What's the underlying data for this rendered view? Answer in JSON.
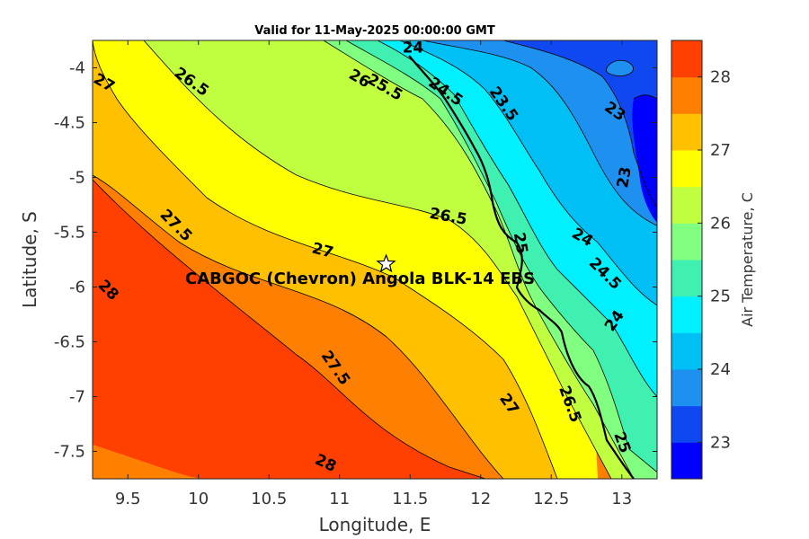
{
  "title": "Valid for 11-May-2025 00:00:00 GMT",
  "chart_data": {
    "type": "heatmap",
    "xlabel": "Longitude, E",
    "ylabel": "Latitude, S",
    "xlim": [
      9.25,
      13.25
    ],
    "ylim": [
      -7.75,
      -3.75
    ],
    "xticks": [
      "9.5",
      "10",
      "10.5",
      "11",
      "11.5",
      "12",
      "12.5",
      "13"
    ],
    "xtick_values": [
      9.5,
      10,
      10.5,
      11,
      11.5,
      12,
      12.5,
      13
    ],
    "yticks": [
      "-4",
      "-4.5",
      "-5",
      "-5.5",
      "-6",
      "-6.5",
      "-7",
      "-7.5"
    ],
    "ytick_values": [
      -4,
      -4.5,
      -5,
      -5.5,
      -6,
      -6.5,
      -7,
      -7.5
    ],
    "colorbar": {
      "label": "Air Temperature, C",
      "range": [
        22.5,
        28.5
      ],
      "ticks": [
        "23",
        "24",
        "25",
        "26",
        "27",
        "28"
      ],
      "tick_values": [
        23,
        24,
        25,
        26,
        27,
        28
      ],
      "bands": [
        {
          "from": 22.5,
          "to": 23.0,
          "color": "#0000ff"
        },
        {
          "from": 23.0,
          "to": 23.5,
          "color": "#0f48f0"
        },
        {
          "from": 23.5,
          "to": 24.0,
          "color": "#1e90f0"
        },
        {
          "from": 24.0,
          "to": 24.5,
          "color": "#00bff5"
        },
        {
          "from": 24.5,
          "to": 25.0,
          "color": "#00f0ff"
        },
        {
          "from": 25.0,
          "to": 25.5,
          "color": "#40f0b0"
        },
        {
          "from": 25.5,
          "to": 26.0,
          "color": "#80ff80"
        },
        {
          "from": 26.0,
          "to": 26.5,
          "color": "#c0ff40"
        },
        {
          "from": 26.5,
          "to": 27.0,
          "color": "#ffff00"
        },
        {
          "from": 27.0,
          "to": 27.5,
          "color": "#ffc000"
        },
        {
          "from": 27.5,
          "to": 28.0,
          "color": "#ff8000"
        },
        {
          "from": 28.0,
          "to": 28.5,
          "color": "#ff4000"
        }
      ]
    },
    "contour_labels": [
      {
        "text": "27",
        "lon": 9.33,
        "lat": -4.14,
        "angle": 30
      },
      {
        "text": "26.5",
        "lon": 9.95,
        "lat": -4.13,
        "angle": 35
      },
      {
        "text": "24",
        "lon": 11.52,
        "lat": -3.82,
        "angle": 0
      },
      {
        "text": "26",
        "lon": 11.14,
        "lat": -4.1,
        "angle": 30
      },
      {
        "text": "25.5",
        "lon": 11.32,
        "lat": -4.18,
        "angle": 30
      },
      {
        "text": "24.5",
        "lon": 11.75,
        "lat": -4.22,
        "angle": 35
      },
      {
        "text": "23.5",
        "lon": 12.16,
        "lat": -4.33,
        "angle": 55
      },
      {
        "text": "23",
        "lon": 12.95,
        "lat": -4.4,
        "angle": 35
      },
      {
        "text": "23",
        "lon": 13.02,
        "lat": -5.0,
        "angle": -80
      },
      {
        "text": "26.5",
        "lon": 11.77,
        "lat": -5.36,
        "angle": 10
      },
      {
        "text": "27.5",
        "lon": 9.84,
        "lat": -5.44,
        "angle": 45
      },
      {
        "text": "27",
        "lon": 10.88,
        "lat": -5.67,
        "angle": 15
      },
      {
        "text": "25",
        "lon": 12.28,
        "lat": -5.6,
        "angle": 80
      },
      {
        "text": "24",
        "lon": 12.72,
        "lat": -5.55,
        "angle": 30
      },
      {
        "text": "24.5",
        "lon": 12.88,
        "lat": -5.88,
        "angle": 45
      },
      {
        "text": "28",
        "lon": 9.36,
        "lat": -6.03,
        "angle": 45
      },
      {
        "text": "24",
        "lon": 12.95,
        "lat": -6.31,
        "angle": -55
      },
      {
        "text": "27.5",
        "lon": 10.97,
        "lat": -6.74,
        "angle": 55
      },
      {
        "text": "27",
        "lon": 12.2,
        "lat": -7.07,
        "angle": 55
      },
      {
        "text": "26.5",
        "lon": 12.63,
        "lat": -7.07,
        "angle": 70
      },
      {
        "text": "25",
        "lon": 13.0,
        "lat": -7.42,
        "angle": 70
      },
      {
        "text": "28",
        "lon": 10.9,
        "lat": -7.61,
        "angle": 25
      }
    ]
  },
  "site": {
    "label": "CABGOC (Chevron)  Angola BLK-14  EBS",
    "lon": 11.33,
    "lat": -5.79
  }
}
